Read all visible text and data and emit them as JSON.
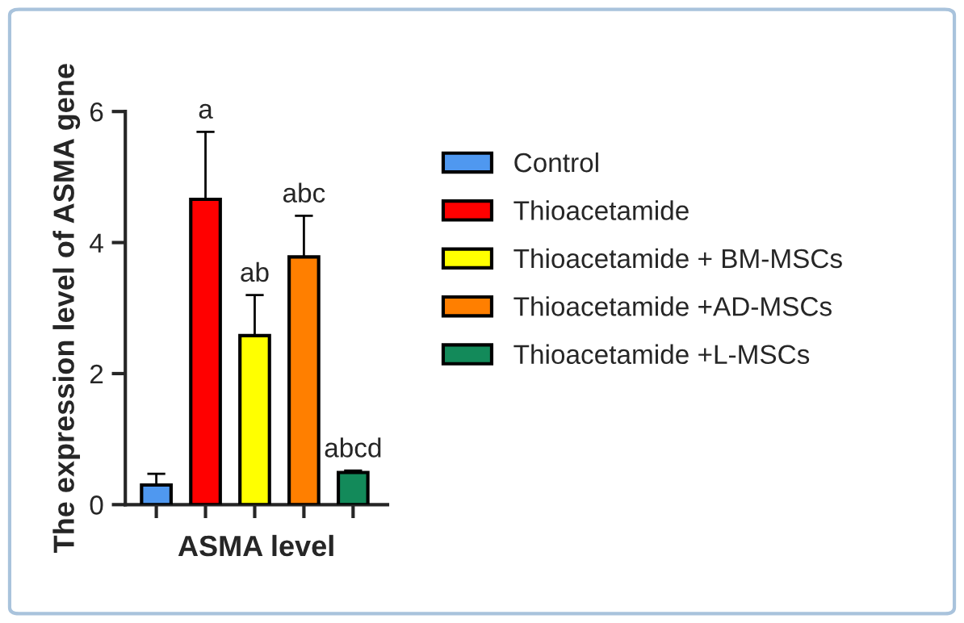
{
  "chart_data": {
    "type": "bar",
    "xlabel": "ASMA level",
    "ylabel": "The expression level of ASMA gene",
    "categories": [
      null,
      null,
      null,
      null,
      null
    ],
    "series": [
      {
        "name": "Control",
        "color": "#4f98f0",
        "values": [
          0.3,
          null,
          null,
          null,
          null
        ],
        "errors": [
          0.17,
          null,
          null,
          null,
          null
        ]
      },
      {
        "name": "Thioacetamide",
        "color": "#ff0000",
        "values": [
          null,
          4.66,
          null,
          null,
          null
        ],
        "errors": [
          null,
          1.03,
          null,
          null,
          null
        ],
        "value_labels": [
          null,
          "a",
          null,
          null,
          null
        ]
      },
      {
        "name": "Thioacetamide + BM-MSCs",
        "color": "#ffff00",
        "values": [
          null,
          null,
          2.58,
          null,
          null
        ],
        "errors": [
          null,
          null,
          0.62,
          null,
          null
        ],
        "value_labels": [
          null,
          null,
          "ab",
          null,
          null
        ]
      },
      {
        "name": "Thioacetamide +AD-MSCs",
        "color": "#ff7f00",
        "values": [
          null,
          null,
          null,
          3.78,
          null
        ],
        "errors": [
          null,
          null,
          null,
          0.63,
          null
        ],
        "value_labels": [
          null,
          null,
          null,
          "abc",
          null
        ]
      },
      {
        "name": "Thioacetamide +L-MSCs",
        "color": "#138a5a",
        "values": [
          null,
          null,
          null,
          null,
          0.49
        ],
        "errors": [
          null,
          null,
          null,
          null,
          0.03
        ],
        "value_labels": [
          null,
          null,
          null,
          null,
          "abcd"
        ]
      }
    ],
    "ylim": [
      0,
      6
    ],
    "yticks": [
      0,
      2,
      4,
      6
    ],
    "legend": "right",
    "grid": false
  }
}
